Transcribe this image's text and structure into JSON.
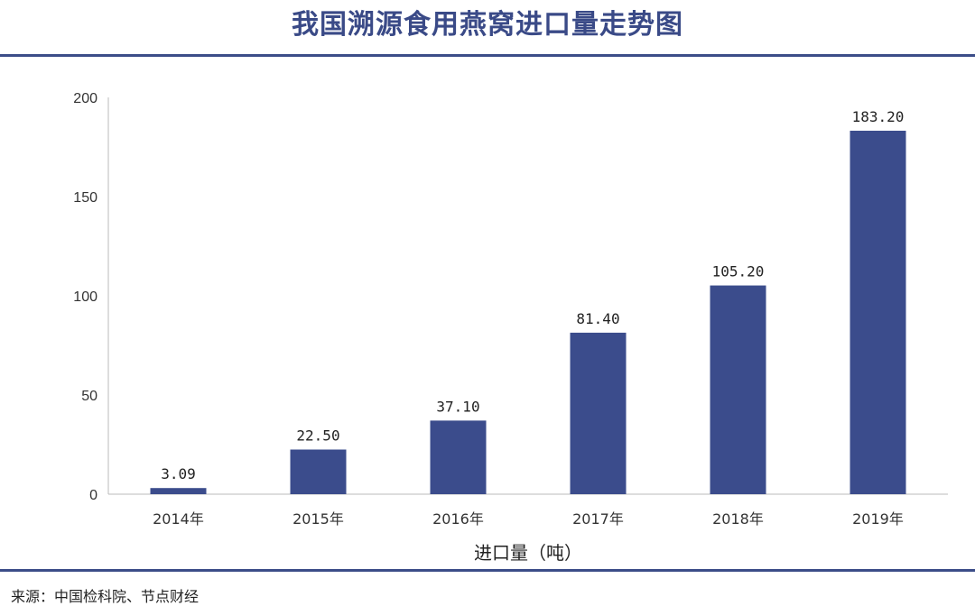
{
  "chart_data": {
    "type": "bar",
    "title": "我国溯源食用燕窝进口量走势图",
    "categories": [
      "2014年",
      "2015年",
      "2016年",
      "2017年",
      "2018年",
      "2019年"
    ],
    "values": [
      3.09,
      22.5,
      37.1,
      81.4,
      105.2,
      183.2
    ],
    "value_labels": [
      "3.09",
      "22.50",
      "37.10",
      "81.40",
      "105.20",
      "183.20"
    ],
    "xlabel": "进口量（吨）",
    "ylabel": "",
    "ylim": [
      0,
      200
    ],
    "yticks": [
      0,
      50,
      100,
      150,
      200
    ],
    "grid": false,
    "bar_color": "#3b4c8c"
  },
  "source": "来源：中国检科院、节点财经"
}
